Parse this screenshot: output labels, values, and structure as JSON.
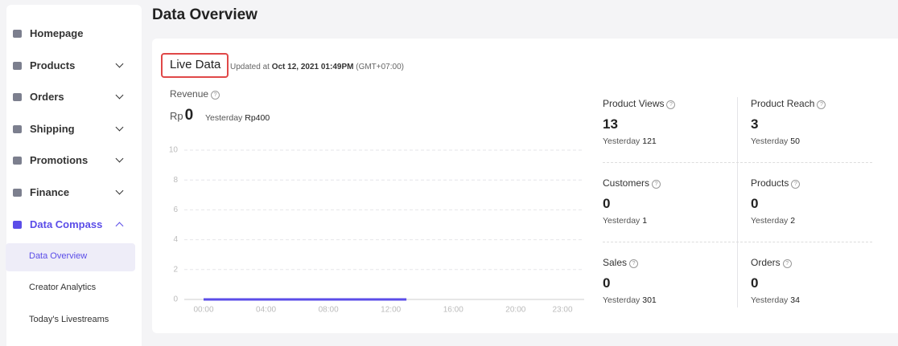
{
  "sidebar": {
    "items": [
      {
        "label": "Homepage",
        "chevron": "none"
      },
      {
        "label": "Products",
        "chevron": "down"
      },
      {
        "label": "Orders",
        "chevron": "down"
      },
      {
        "label": "Shipping",
        "chevron": "down"
      },
      {
        "label": "Promotions",
        "chevron": "down"
      },
      {
        "label": "Finance",
        "chevron": "down"
      },
      {
        "label": "Data Compass",
        "chevron": "up",
        "active": true
      }
    ],
    "subitems": [
      {
        "label": "Data Overview",
        "active": true
      },
      {
        "label": "Creator Analytics"
      },
      {
        "label": "Today's Livestreams"
      }
    ]
  },
  "header": {
    "title": "Data Overview"
  },
  "live": {
    "title": "Live Data",
    "updated_prefix": "Updated at",
    "updated_time": "Oct 12, 2021 01:49PM",
    "timezone": "(GMT+07:00)"
  },
  "revenue": {
    "label": "Revenue",
    "currency": "Rp",
    "value": 0,
    "yesterday_label": "Yesterday",
    "yesterday_value": "Rp400"
  },
  "revenue_chart": {
    "type": "line",
    "xlim": [
      0,
      23
    ],
    "ylim": [
      0,
      10
    ],
    "yticks": [
      0,
      2,
      4,
      6,
      8,
      10
    ],
    "xticks": [
      {
        "value": 0,
        "label": "00:00"
      },
      {
        "value": 4,
        "label": "04:00"
      },
      {
        "value": 8,
        "label": "08:00"
      },
      {
        "value": 12,
        "label": "12:00"
      },
      {
        "value": 16,
        "label": "16:00"
      },
      {
        "value": 20,
        "label": "20:00"
      },
      {
        "value": 23,
        "label": "23:00"
      }
    ],
    "grid": true,
    "series": [
      {
        "color": "#5b4de8",
        "x": [
          0,
          1,
          2,
          3,
          4,
          5,
          6,
          7,
          8,
          9,
          10,
          11,
          12,
          13
        ],
        "values": [
          0,
          0,
          0,
          0,
          0,
          0,
          0,
          0,
          0,
          0,
          0,
          0,
          0,
          0
        ]
      }
    ]
  },
  "metrics": [
    {
      "label": "Product Views",
      "value": 13,
      "yesterday_label": "Yesterday",
      "yesterday_value": 121
    },
    {
      "label": "Product Reach",
      "value": 3,
      "yesterday_label": "Yesterday",
      "yesterday_value": 50
    },
    {
      "label": "Customers",
      "value": 0,
      "yesterday_label": "Yesterday",
      "yesterday_value": 1
    },
    {
      "label": "Products",
      "value": 0,
      "yesterday_label": "Yesterday",
      "yesterday_value": 2
    },
    {
      "label": "Sales",
      "value": 0,
      "yesterday_label": "Yesterday",
      "yesterday_value": 301
    },
    {
      "label": "Orders",
      "value": 0,
      "yesterday_label": "Yesterday",
      "yesterday_value": 34
    }
  ]
}
